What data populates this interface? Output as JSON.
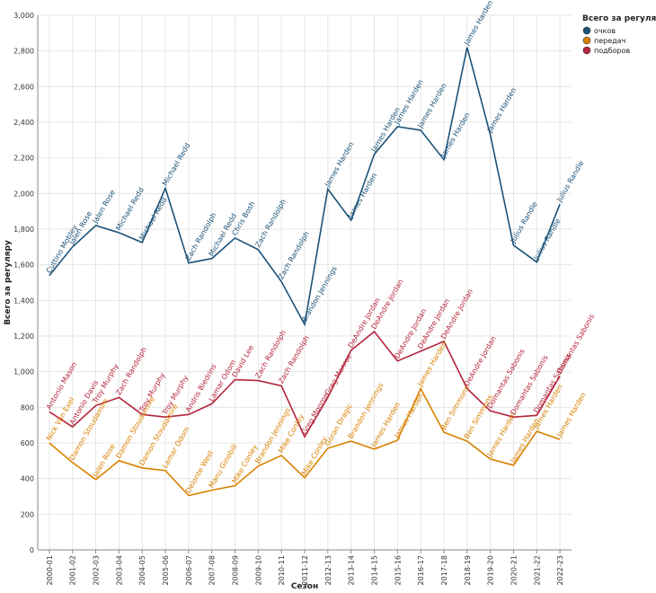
{
  "chart_data": {
    "type": "line",
    "title": "",
    "xlabel": "Сезон",
    "ylabel": "Всего за регуляру",
    "ylim": [
      0,
      3000
    ],
    "yticks": [
      0,
      200,
      400,
      600,
      800,
      1000,
      1200,
      1400,
      1600,
      1800,
      2000,
      2200,
      2400,
      2600,
      2800,
      3000
    ],
    "ytick_labels": [
      "0",
      "200",
      "400",
      "600",
      "800",
      "1,000",
      "1,200",
      "1,400",
      "1,600",
      "1,800",
      "2,000",
      "2,200",
      "2,400",
      "2,600",
      "2,800",
      "3,000"
    ],
    "categories": [
      "2000-01",
      "2001-02",
      "2002-03",
      "2003-04",
      "2004-05",
      "2005-06",
      "2006-07",
      "2007-08",
      "2008-09",
      "2009-10",
      "2010-11",
      "2011-12",
      "2012-13",
      "2013-14",
      "2014-15",
      "2015-16",
      "2016-17",
      "2017-18",
      "2018-19",
      "2019-20",
      "2020-21",
      "2021-22",
      "2022-23"
    ],
    "legend": {
      "title": "Всего за регуляру",
      "position": "top-right"
    },
    "series": [
      {
        "name": "очков",
        "color": "#1b5278",
        "values": [
          1540,
          1700,
          1820,
          1780,
          1725,
          2030,
          1610,
          1635,
          1750,
          1685,
          1505,
          1265,
          2025,
          1850,
          2220,
          2375,
          2355,
          2190,
          2820,
          2330,
          1710,
          1615,
          1940
        ],
        "labels": [
          "Cuttino Mobley",
          "Jalen Rose",
          "Jalen Rose",
          "Michael Redd",
          "Michael Redd",
          "Michael Redd",
          "Zach Randolph",
          "Michael Redd",
          "Chris Bosh",
          "Zach Randolph",
          "Zach Randolph",
          "Brandon Jennings",
          "James Harden",
          "James Harden",
          "James Harden",
          "James Harden",
          "James Harden",
          "James Harden",
          "James Harden",
          "James Harden",
          "Julius Randle",
          "Julius Randle",
          "Julius Randle"
        ]
      },
      {
        "name": "передач",
        "color": "#d98100",
        "values": [
          600,
          490,
          395,
          500,
          460,
          445,
          305,
          335,
          360,
          470,
          530,
          405,
          570,
          610,
          565,
          615,
          905,
          660,
          610,
          510,
          475,
          665,
          620
        ],
        "labels": [
          "Nick Van Exel",
          "Damon Stoudamire",
          "Jalen Rose",
          "Damon Stoudamire",
          "Damon Stoudamire",
          "Lamar Odom",
          "Delonte West",
          "Manu Ginobili",
          "Mike Conley",
          "Brandon Jennings",
          "Mike Conley",
          "Mike Conley",
          "Goran Dragic",
          "Brandon Jennings",
          "James Harden",
          "James Harden",
          "James Harden",
          "Ben Simmons",
          "Ben Simmons",
          "James Harden",
          "James Harden",
          "James Harden",
          "James Harden"
        ]
      },
      {
        "name": "подборов",
        "color": "#b5243c",
        "values": [
          775,
          690,
          810,
          855,
          760,
          745,
          760,
          820,
          955,
          950,
          920,
          635,
          855,
          1120,
          1225,
          1060,
          1115,
          1170,
          905,
          780,
          745,
          755,
          975
        ],
        "labels": [
          "Antonio Mason",
          "Antonio Davis",
          "Troy Murphy",
          "Zach Randolph",
          "Troy Murphy",
          "Troy Murphy",
          "Andris Biedrins",
          "Lamar Odom",
          "David Lee",
          "Zach Randolph",
          "Zach Randolph",
          "Greg Monroe",
          "Greg Monroe",
          "DeAndre Jordan",
          "DeAndre Jordan",
          "DeAndre Jordan",
          "DeAndre Jordan",
          "DeAndre Jordan",
          "DeAndre Jordan",
          "Domantas Sabonis",
          "Domantas Sabonis",
          "Domantas Sabonis",
          "Domantas Sabonis"
        ]
      }
    ]
  }
}
